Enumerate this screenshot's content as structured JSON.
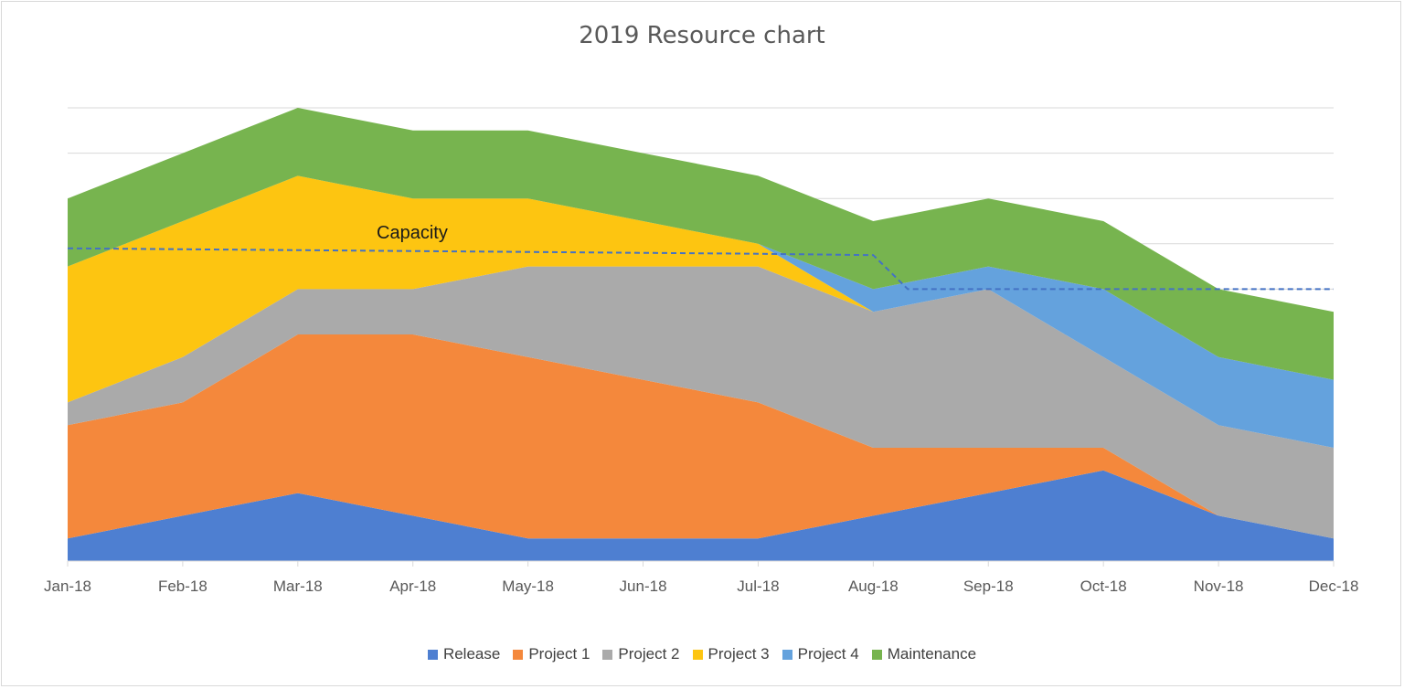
{
  "chart_data": {
    "type": "area",
    "stacked": true,
    "title": "2019 Resource chart",
    "xlabel": "",
    "ylabel": "",
    "categories": [
      "Jan-18",
      "Feb-18",
      "Mar-18",
      "Apr-18",
      "May-18",
      "Jun-18",
      "Jul-18",
      "Aug-18",
      "Sep-18",
      "Oct-18",
      "Nov-18",
      "Dec-18"
    ],
    "ylim": [
      0,
      10
    ],
    "grid": true,
    "y_tick_labels_shown": false,
    "legend_position": "bottom",
    "series": [
      {
        "name": "Release",
        "color": "#4e7fd1",
        "values": [
          0.5,
          1,
          1.5,
          1,
          0.5,
          0.5,
          0.5,
          1,
          1.5,
          2,
          1,
          0.5
        ]
      },
      {
        "name": "Project 1",
        "color": "#f4883c",
        "values": [
          2.5,
          2.5,
          3.5,
          4,
          4,
          3.5,
          3,
          1.5,
          1,
          0.5,
          0,
          0
        ]
      },
      {
        "name": "Project 2",
        "color": "#aaaaaa",
        "values": [
          0.5,
          1,
          1,
          1,
          2,
          2.5,
          3,
          3,
          3.5,
          2,
          2,
          2
        ]
      },
      {
        "name": "Project 3",
        "color": "#fdc511",
        "values": [
          3,
          3,
          2.5,
          2,
          1.5,
          1,
          0.5,
          0,
          0,
          0,
          0,
          0
        ]
      },
      {
        "name": "Project 4",
        "color": "#64a2dd",
        "values": [
          0,
          0,
          0,
          0,
          0,
          0,
          0,
          0.5,
          0.5,
          1.5,
          1.5,
          1.5
        ]
      },
      {
        "name": "Maintenance",
        "color": "#77b44f",
        "values": [
          1.5,
          1.5,
          1.5,
          1.5,
          1.5,
          1.5,
          1.5,
          1.5,
          1.5,
          1.5,
          1.5,
          1.5
        ]
      }
    ],
    "capacity": {
      "label": "Capacity",
      "color": "#4472c4",
      "style": "dashed",
      "values": [
        6.9,
        6.88,
        6.86,
        6.84,
        6.82,
        6.8,
        6.78,
        6.75,
        6.0,
        6.0,
        6.0,
        6.0
      ]
    }
  }
}
